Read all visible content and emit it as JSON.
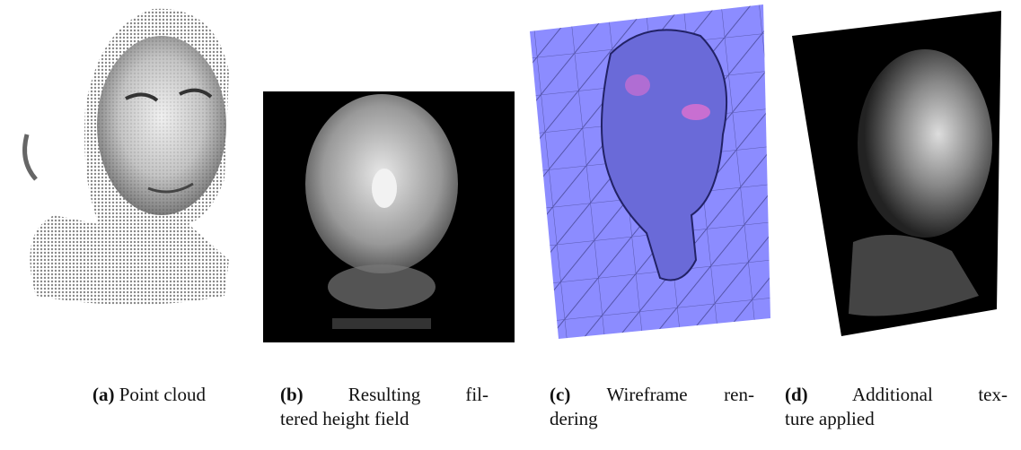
{
  "captions": [
    {
      "label": "(a)",
      "lines": [
        "Point cloud"
      ]
    },
    {
      "label": "(b)",
      "lines": [
        "Resulting fil-",
        "tered height field"
      ]
    },
    {
      "label": "(c)",
      "lines": [
        "Wireframe ren-",
        "dering"
      ]
    },
    {
      "label": "(d)",
      "lines": [
        "Additional tex-",
        "ture applied"
      ]
    }
  ]
}
